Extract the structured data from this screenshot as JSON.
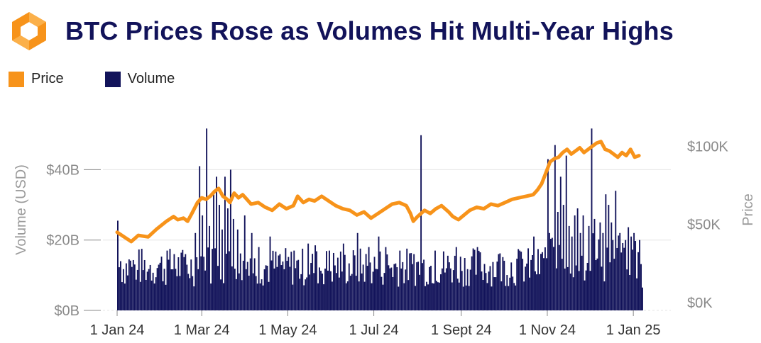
{
  "header": {
    "title": "BTC Prices Rose as Volumes Hit Multi-Year Highs",
    "logo_icon": "orange-hexagon-logo-icon"
  },
  "legend": [
    {
      "label": "Price",
      "color": "#f7931a"
    },
    {
      "label": "Volume",
      "color": "#12135a"
    }
  ],
  "chart_data": {
    "type": "bar+line",
    "title": "BTC Prices Rose as Volumes Hit Multi-Year Highs",
    "x_range": [
      "2024-01-01",
      "2025-01-14"
    ],
    "x_ticks": [
      "1 Jan 24",
      "1 Mar 24",
      "1 May 24",
      "1 Jul 24",
      "1 Sept 24",
      "1 Nov 24",
      "1 Jan 25"
    ],
    "left_axis": {
      "label": "Volume (USD)",
      "ticks": [
        "$0B",
        "$20B",
        "$40B"
      ],
      "tick_values": [
        0,
        20,
        40
      ],
      "range": [
        0,
        56
      ]
    },
    "right_axis": {
      "label": "Price",
      "ticks": [
        "$0K",
        "$50K",
        "$100K"
      ],
      "tick_values": [
        0,
        50,
        100
      ],
      "range": [
        -5,
        121
      ]
    },
    "series": [
      {
        "name": "Volume",
        "type": "bar",
        "unit": "billion USD",
        "baseline": 15,
        "spikes": [
          [
            0,
            25.5
          ],
          [
            2,
            14
          ],
          [
            8,
            14.5
          ],
          [
            14,
            11.5
          ],
          [
            21,
            11
          ],
          [
            29,
            13
          ],
          [
            35,
            17
          ],
          [
            40,
            16
          ],
          [
            48,
            16
          ],
          [
            55,
            22
          ],
          [
            58,
            41
          ],
          [
            60,
            27
          ],
          [
            63,
            51.7
          ],
          [
            65,
            24
          ],
          [
            68,
            33
          ],
          [
            70,
            38
          ],
          [
            72,
            30
          ],
          [
            74,
            23
          ],
          [
            76,
            38
          ],
          [
            78,
            29
          ],
          [
            80,
            40
          ],
          [
            82,
            26
          ],
          [
            85,
            23
          ],
          [
            90,
            27
          ],
          [
            95,
            22
          ],
          [
            100,
            18
          ],
          [
            108,
            21
          ],
          [
            115,
            16
          ],
          [
            125,
            17
          ],
          [
            135,
            19
          ],
          [
            140,
            18.5
          ],
          [
            150,
            17
          ],
          [
            160,
            19
          ],
          [
            170,
            22
          ],
          [
            178,
            18
          ],
          [
            185,
            21
          ],
          [
            190,
            18
          ],
          [
            200,
            17
          ],
          [
            210,
            16
          ],
          [
            215,
            49.8
          ],
          [
            225,
            17
          ],
          [
            240,
            18
          ],
          [
            255,
            18
          ],
          [
            270,
            16
          ],
          [
            285,
            17
          ],
          [
            295,
            21
          ],
          [
            305,
            43
          ],
          [
            306,
            22
          ],
          [
            310,
            47
          ],
          [
            312,
            28
          ],
          [
            314,
            38
          ],
          [
            316,
            30
          ],
          [
            318,
            44
          ],
          [
            320,
            24
          ],
          [
            322,
            21
          ],
          [
            324,
            27
          ],
          [
            326,
            29
          ],
          [
            328,
            22
          ],
          [
            330,
            27
          ],
          [
            334,
            24
          ],
          [
            336,
            51.7
          ],
          [
            338,
            26
          ],
          [
            342,
            25
          ],
          [
            344,
            22
          ],
          [
            346,
            33
          ],
          [
            348,
            30
          ],
          [
            350,
            25
          ],
          [
            353,
            34
          ],
          [
            356,
            22
          ],
          [
            360,
            20
          ],
          [
            364,
            21
          ],
          [
            366,
            22
          ],
          [
            370,
            20
          ],
          [
            372,
            6.5
          ]
        ]
      },
      {
        "name": "Price",
        "type": "line",
        "unit": "thousand USD",
        "points": [
          [
            0,
            45
          ],
          [
            5,
            42
          ],
          [
            10,
            39
          ],
          [
            15,
            43
          ],
          [
            22,
            42
          ],
          [
            28,
            47
          ],
          [
            35,
            52
          ],
          [
            40,
            55
          ],
          [
            43,
            53
          ],
          [
            47,
            54
          ],
          [
            50,
            52
          ],
          [
            53,
            57
          ],
          [
            57,
            64
          ],
          [
            60,
            67
          ],
          [
            63,
            66
          ],
          [
            66,
            68
          ],
          [
            69,
            71
          ],
          [
            72,
            73
          ],
          [
            75,
            68
          ],
          [
            78,
            66
          ],
          [
            80,
            64
          ],
          [
            83,
            70
          ],
          [
            86,
            67
          ],
          [
            89,
            69
          ],
          [
            92,
            66
          ],
          [
            95,
            63
          ],
          [
            100,
            64
          ],
          [
            105,
            61
          ],
          [
            110,
            59
          ],
          [
            115,
            63
          ],
          [
            120,
            60
          ],
          [
            125,
            62
          ],
          [
            128,
            68
          ],
          [
            132,
            64
          ],
          [
            136,
            66
          ],
          [
            140,
            65
          ],
          [
            145,
            68
          ],
          [
            150,
            65
          ],
          [
            155,
            62
          ],
          [
            160,
            60
          ],
          [
            165,
            59
          ],
          [
            170,
            56
          ],
          [
            175,
            58
          ],
          [
            180,
            54
          ],
          [
            185,
            57
          ],
          [
            190,
            60
          ],
          [
            195,
            63
          ],
          [
            200,
            64
          ],
          [
            205,
            62
          ],
          [
            208,
            57
          ],
          [
            210,
            52
          ],
          [
            213,
            55
          ],
          [
            218,
            59
          ],
          [
            222,
            57
          ],
          [
            226,
            60
          ],
          [
            230,
            62
          ],
          [
            235,
            58
          ],
          [
            238,
            55
          ],
          [
            242,
            53
          ],
          [
            246,
            56
          ],
          [
            250,
            59
          ],
          [
            255,
            61
          ],
          [
            260,
            60
          ],
          [
            265,
            63
          ],
          [
            270,
            62
          ],
          [
            275,
            64
          ],
          [
            280,
            66
          ],
          [
            285,
            67
          ],
          [
            290,
            68
          ],
          [
            295,
            69
          ],
          [
            298,
            72
          ],
          [
            301,
            76
          ],
          [
            304,
            83
          ],
          [
            307,
            90
          ],
          [
            310,
            92
          ],
          [
            313,
            93
          ],
          [
            316,
            96
          ],
          [
            319,
            98
          ],
          [
            322,
            95
          ],
          [
            325,
            97
          ],
          [
            328,
            99
          ],
          [
            331,
            96
          ],
          [
            334,
            98
          ],
          [
            337,
            100
          ],
          [
            340,
            102
          ],
          [
            343,
            103
          ],
          [
            346,
            98
          ],
          [
            349,
            97
          ],
          [
            352,
            95
          ],
          [
            355,
            93
          ],
          [
            358,
            96
          ],
          [
            361,
            94
          ],
          [
            364,
            98
          ],
          [
            367,
            93
          ],
          [
            370,
            94
          ]
        ]
      }
    ],
    "grid": "horizontal dashed"
  }
}
